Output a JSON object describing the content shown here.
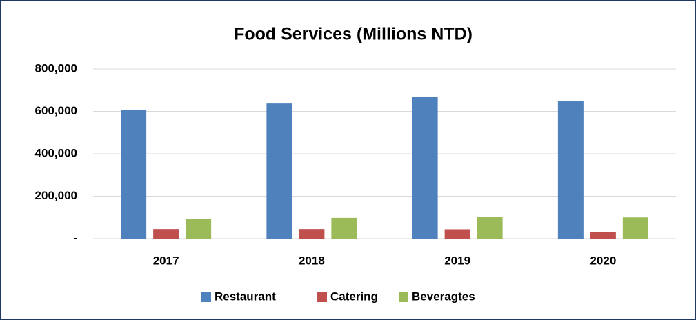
{
  "chart_data": {
    "type": "bar",
    "title": "Food Services  (Millions NTD)",
    "categories": [
      "2017",
      "2018",
      "2019",
      "2020"
    ],
    "series": [
      {
        "name": "Restaurant",
        "color": "#4f81bd",
        "values": [
          605000,
          637000,
          670000,
          650000
        ]
      },
      {
        "name": "Catering",
        "color": "#c0504d",
        "values": [
          45000,
          45000,
          44000,
          32000
        ]
      },
      {
        "name": "Beveragtes",
        "color": "#9bbb59",
        "values": [
          94000,
          98000,
          102000,
          100000
        ]
      }
    ],
    "ylim": [
      0,
      800000
    ],
    "yticks": [
      {
        "value": 0,
        "label": "-"
      },
      {
        "value": 200000,
        "label": "200,000"
      },
      {
        "value": 400000,
        "label": "400,000"
      },
      {
        "value": 600000,
        "label": "600,000"
      },
      {
        "value": 800000,
        "label": "800,000"
      }
    ],
    "grid": true,
    "legend": "bottom"
  }
}
